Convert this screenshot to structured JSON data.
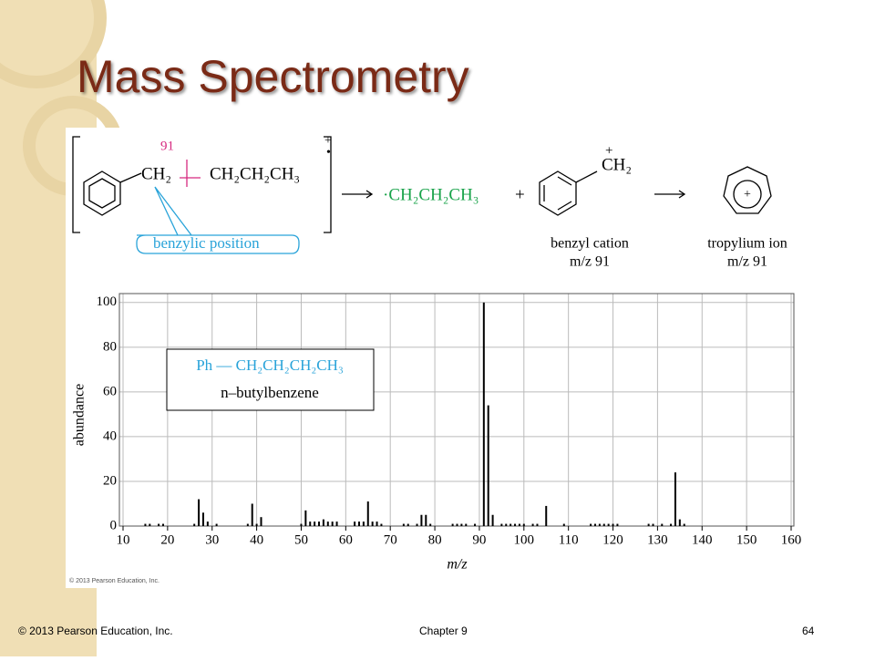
{
  "slide": {
    "title": "Mass Spectrometry",
    "footer_left": "© 2013 Pearson Education, Inc.",
    "footer_center": "Chapter 9",
    "page_number": "64",
    "image_credit": "© 2013 Pearson Education, Inc."
  },
  "scheme": {
    "cleavage_mass": "91",
    "ch2": "CH₂",
    "chain": "CH₂CH₂CH₃",
    "charge": "+",
    "radical_dot": "•",
    "label": "benzylic position",
    "radical": "·CH₂CH₂CH₃",
    "plus": "+",
    "cation_group": "CH₂",
    "cation_charge": "+",
    "benzyl_name": "benzyl cation",
    "benzyl_mz": "m/z 91",
    "tropylium_charge": "+",
    "tropylium_name": "tropylium ion",
    "tropylium_mz": "m/z 91"
  },
  "chart_data": {
    "type": "bar",
    "xlabel": "m/z",
    "ylabel": "abundance",
    "inset": {
      "formula": "Ph — CH₂CH₂CH₂CH₃",
      "name": "n–butylbenzene"
    },
    "x": [
      15,
      16,
      18,
      19,
      26,
      27,
      28,
      29,
      31,
      38,
      39,
      40,
      41,
      50,
      51,
      52,
      53,
      54,
      55,
      56,
      57,
      58,
      62,
      63,
      64,
      65,
      66,
      67,
      68,
      73,
      74,
      76,
      77,
      78,
      79,
      84,
      85,
      86,
      87,
      89,
      91,
      92,
      93,
      95,
      96,
      97,
      98,
      99,
      100,
      102,
      103,
      105,
      109,
      115,
      116,
      117,
      118,
      119,
      120,
      121,
      128,
      129,
      131,
      133,
      134,
      135,
      136
    ],
    "values": [
      1,
      1,
      1,
      1,
      1,
      12,
      6,
      2,
      1,
      1,
      10,
      1,
      4,
      1,
      7,
      2,
      2,
      2,
      3,
      2,
      2,
      2,
      2,
      2,
      2,
      11,
      2,
      2,
      1,
      1,
      1,
      1,
      5,
      5,
      1,
      1,
      1,
      1,
      1,
      1,
      100,
      54,
      5,
      1,
      1,
      1,
      1,
      1,
      1,
      1,
      1,
      9,
      1,
      1,
      1,
      1,
      1,
      1,
      1,
      1,
      1,
      1,
      1,
      1,
      24,
      3,
      1
    ],
    "color": "#000000",
    "xlim": [
      10,
      160
    ],
    "xticks": [
      10,
      20,
      30,
      40,
      50,
      60,
      70,
      80,
      90,
      100,
      110,
      120,
      130,
      140,
      150,
      160
    ],
    "ylim": [
      0,
      104
    ],
    "yticks": [
      0,
      20,
      40,
      60,
      80,
      100
    ],
    "grid": true
  }
}
